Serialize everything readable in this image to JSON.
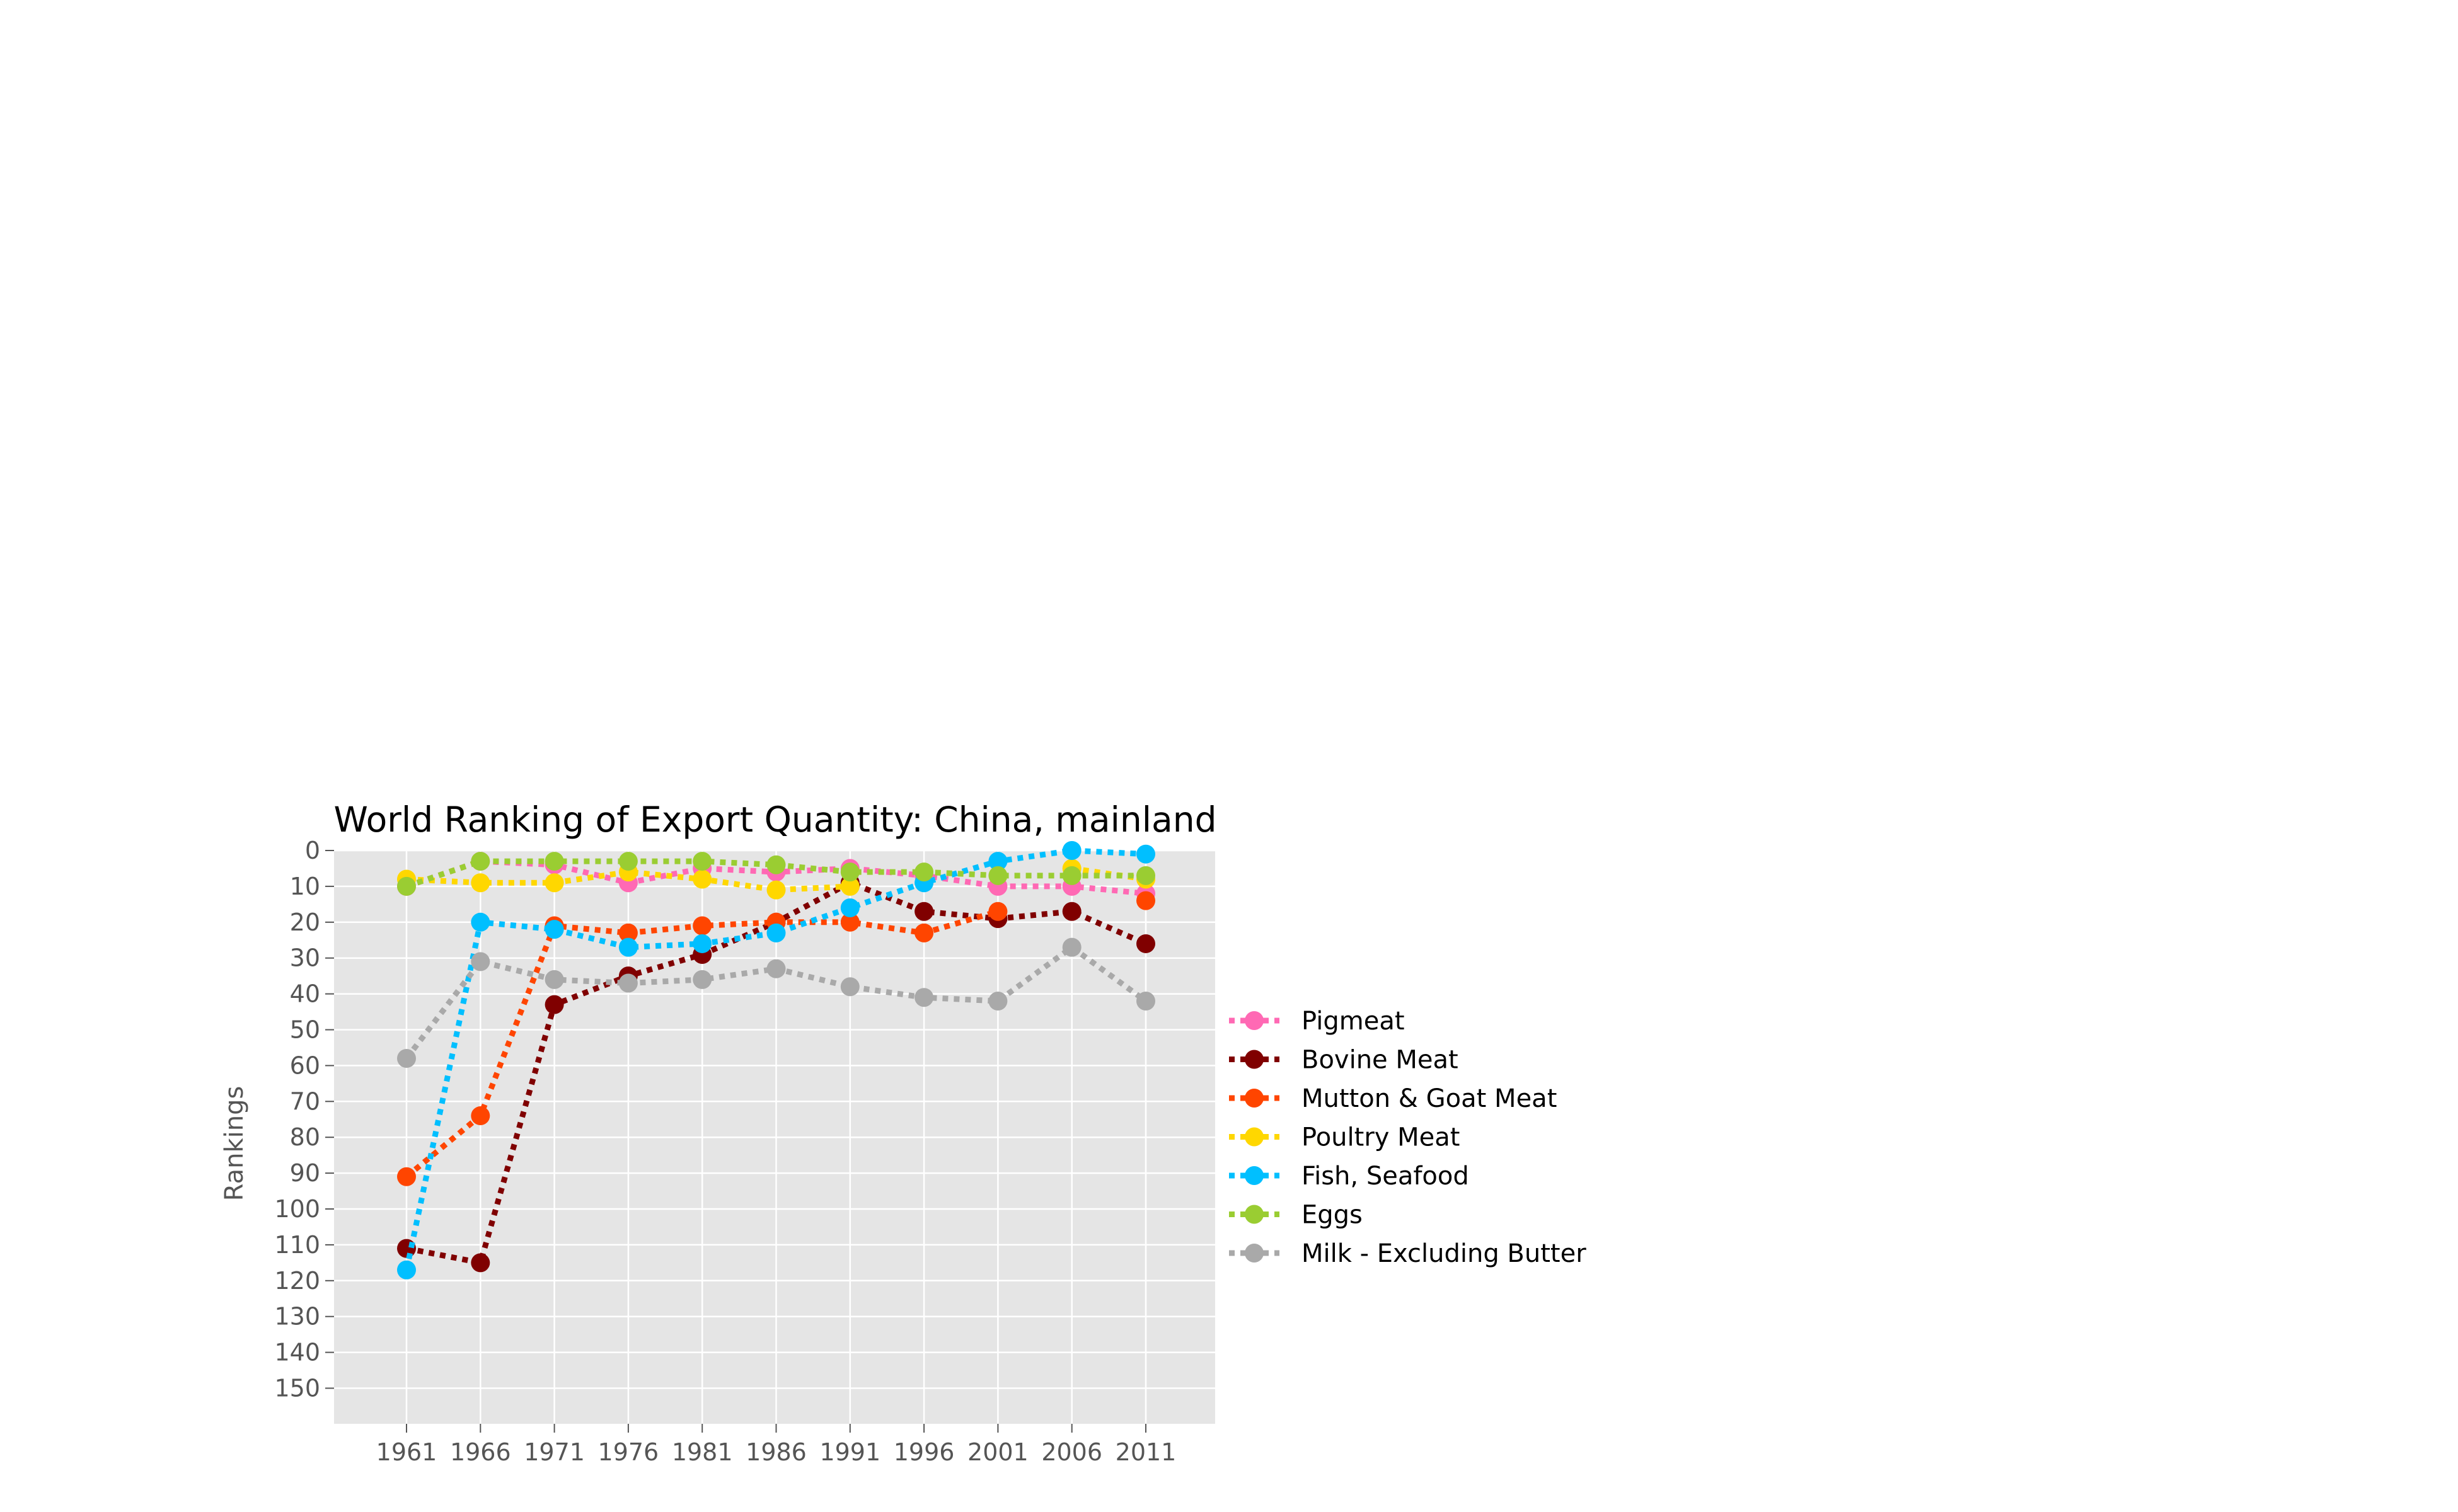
{
  "chart_data": {
    "type": "line",
    "title": "World Ranking of Export Quantity: China, mainland",
    "xlabel": "",
    "ylabel": "Rankings",
    "x": [
      1961,
      1966,
      1971,
      1976,
      1981,
      1986,
      1991,
      1996,
      2001,
      2006,
      2011
    ],
    "xtick_labels": [
      "1961",
      "1966",
      "1971",
      "1976",
      "1981",
      "1986",
      "1991",
      "1996",
      "2001",
      "2006",
      "2011"
    ],
    "ylim": [
      0,
      160
    ],
    "y_inverted": true,
    "yticks": [
      0,
      10,
      20,
      30,
      40,
      50,
      60,
      70,
      80,
      90,
      100,
      110,
      120,
      130,
      140,
      150
    ],
    "ytick_labels": [
      "0",
      "10",
      "20",
      "30",
      "40",
      "50",
      "60",
      "70",
      "80",
      "90",
      "100",
      "110",
      "120",
      "130",
      "140",
      "150"
    ],
    "grid": true,
    "legend_position": "right",
    "background_color": "#e5e5e5",
    "series": [
      {
        "name": "Pigmeat",
        "color": "#ff69b4",
        "values": [
          10,
          3,
          4,
          9,
          5,
          6,
          5,
          7,
          10,
          10,
          12
        ]
      },
      {
        "name": "Bovine Meat",
        "color": "#800000",
        "values": [
          111,
          115,
          43,
          35,
          29,
          20,
          9,
          17,
          19,
          17,
          26
        ]
      },
      {
        "name": "Mutton & Goat Meat",
        "color": "#ff4500",
        "values": [
          91,
          74,
          21,
          23,
          21,
          20,
          20,
          23,
          17,
          null,
          14
        ]
      },
      {
        "name": "Poultry Meat",
        "color": "#ffd700",
        "values": [
          8,
          9,
          9,
          6,
          8,
          11,
          10,
          null,
          null,
          5,
          8
        ]
      },
      {
        "name": "Fish, Seafood",
        "color": "#00bfff",
        "values": [
          117,
          20,
          22,
          27,
          26,
          23,
          16,
          9,
          3,
          0,
          1
        ]
      },
      {
        "name": "Eggs",
        "color": "#9acd32",
        "values": [
          10,
          3,
          3,
          3,
          3,
          4,
          6,
          6,
          7,
          7,
          7
        ]
      },
      {
        "name": "Milk - Excluding Butter",
        "color": "#a9a9a9",
        "values": [
          58,
          31,
          36,
          37,
          36,
          33,
          38,
          41,
          42,
          27,
          42
        ]
      }
    ]
  }
}
